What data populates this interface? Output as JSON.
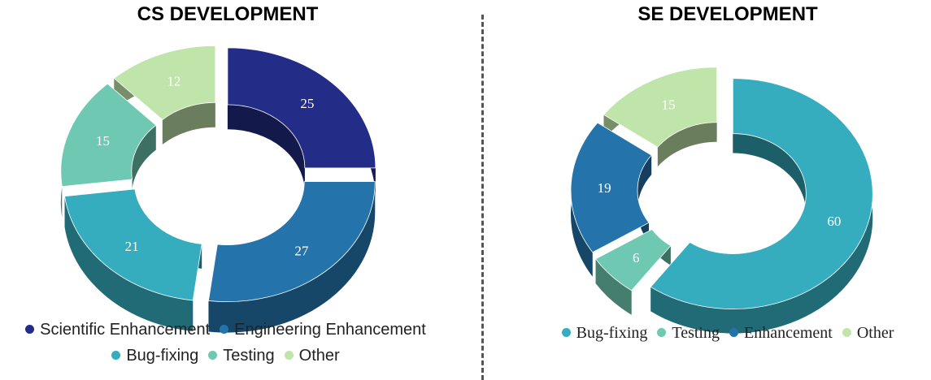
{
  "chart_data": [
    {
      "type": "pie",
      "title": "CS DEVELOPMENT",
      "categories": [
        "Scientific Enhancement",
        "Engineering Enhancement",
        "Bug-fixing",
        "Testing",
        "Other"
      ],
      "values": [
        25,
        27,
        21,
        15,
        12
      ],
      "colors": [
        "#232d87",
        "#2473aa",
        "#35adbe",
        "#6fc9b2",
        "#c0e5aa"
      ],
      "legend_position": "bottom",
      "legend_rows": [
        [
          "Scientific Enhancement",
          "Engineering Enhancement"
        ],
        [
          "Bug-fixing",
          "Testing",
          "Other"
        ]
      ],
      "style": "3d-donut-exploded"
    },
    {
      "type": "pie",
      "title": "SE DEVELOPMENT",
      "categories": [
        "Bug-fixing",
        "Testing",
        "Enhancement",
        "Other"
      ],
      "values": [
        60,
        6,
        19,
        15
      ],
      "colors": [
        "#35adbe",
        "#6fc9b2",
        "#2473aa",
        "#c0e5aa"
      ],
      "legend_position": "bottom",
      "legend_rows": [
        [
          "Bug-fixing",
          "Testing",
          "Enhancement",
          "Other"
        ]
      ],
      "style": "3d-donut-exploded"
    }
  ]
}
